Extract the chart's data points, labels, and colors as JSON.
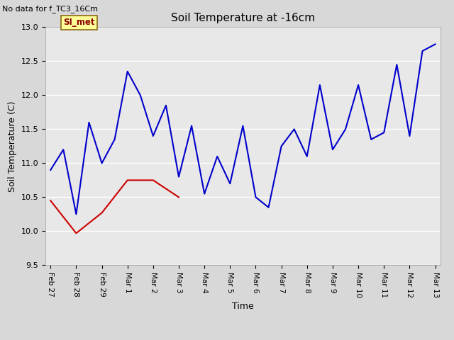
{
  "title": "Soil Temperature at -16cm",
  "no_data_label": "No data for f_TC3_16Cm",
  "si_met_label": "SI_met",
  "xlabel": "Time",
  "ylabel": "Soil Temperature (C)",
  "ylim": [
    9.5,
    13.0
  ],
  "fig_facecolor": "#d8d8d8",
  "plot_bg_color": "#e8e8e8",
  "tc1_color": "#cc0000",
  "tc2_color": "#0000cc",
  "xtick_labels": [
    "Feb 27",
    "Feb 28",
    "Feb 29",
    "Mar 1",
    "Mar 2",
    "Mar 3",
    "Mar 4",
    "Mar 5",
    "Mar 6",
    "Mar 7",
    "Mar 8",
    "Mar 9",
    "Mar 10",
    "Mar 11",
    "Mar 12",
    "Mar 13"
  ],
  "tc1_x": [
    0,
    1,
    2,
    3,
    4,
    5
  ],
  "tc1_y": [
    10.45,
    9.97,
    10.27,
    10.75,
    10.75,
    10.5
  ],
  "tc2_x": [
    0,
    0.5,
    1,
    1.5,
    2,
    2.5,
    3,
    3.5,
    4,
    4.5,
    5,
    5.5,
    6,
    6.5,
    7,
    7.5,
    8,
    8.5,
    9,
    9.5,
    10,
    10.5,
    11,
    11.5,
    12,
    12.5,
    13,
    13.5,
    14,
    14.5,
    15
  ],
  "tc2_y": [
    10.9,
    11.2,
    10.25,
    11.6,
    11.0,
    11.35,
    12.35,
    12.0,
    11.4,
    11.85,
    10.8,
    11.55,
    10.55,
    11.1,
    10.7,
    11.55,
    10.5,
    10.35,
    11.25,
    11.5,
    11.1,
    12.15,
    11.2,
    11.5,
    12.15,
    11.35,
    11.45,
    12.45,
    11.4,
    12.65,
    12.75
  ]
}
